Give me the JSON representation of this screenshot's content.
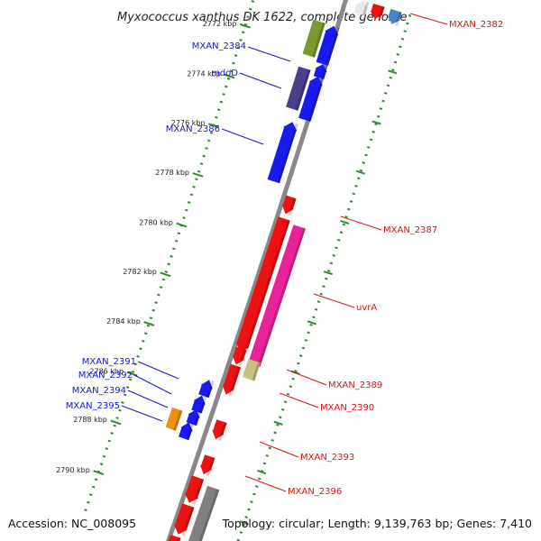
{
  "title": "Myxococcus xanthus DK 1622, complete genome",
  "footer": {
    "accession": "Accession: NC_008095",
    "topology": "Topology: circular; Length: 9,139,763 bp; Genes: 7,410"
  },
  "scale_ticks": [
    "2772 kbp",
    "2774 kbp",
    "2776 kbp",
    "2778 kbp",
    "2780 kbp",
    "2782 kbp",
    "2784 kbp",
    "2786 kbp",
    "2788 kbp",
    "2790 kbp"
  ],
  "forward_labels": [
    "MXAN_2384",
    "mdoD",
    "MXAN_2386",
    "MXAN_2391",
    "MXAN_2392",
    "MXAN_2394",
    "MXAN_2395"
  ],
  "reverse_labels": [
    "MXAN_2382",
    "MXAN_2387",
    "uvrA",
    "MXAN_2389",
    "MXAN_2390",
    "MXAN_2393",
    "MXAN_2396"
  ],
  "colors": {
    "forward_cds": "#1a1aee",
    "reverse_cds": "#ee1111",
    "backbone": "#888888",
    "dotted_track": "#2e8b2e",
    "forward_label": "#1515d6",
    "reverse_label": "#e01010",
    "olive": "#7a9a2e",
    "purple": "#4a3f8a",
    "magenta": "#e8239a",
    "tan": "#c9c080",
    "orange": "#ef8e10",
    "gray": "#808080",
    "steel": "#4a86c6"
  }
}
